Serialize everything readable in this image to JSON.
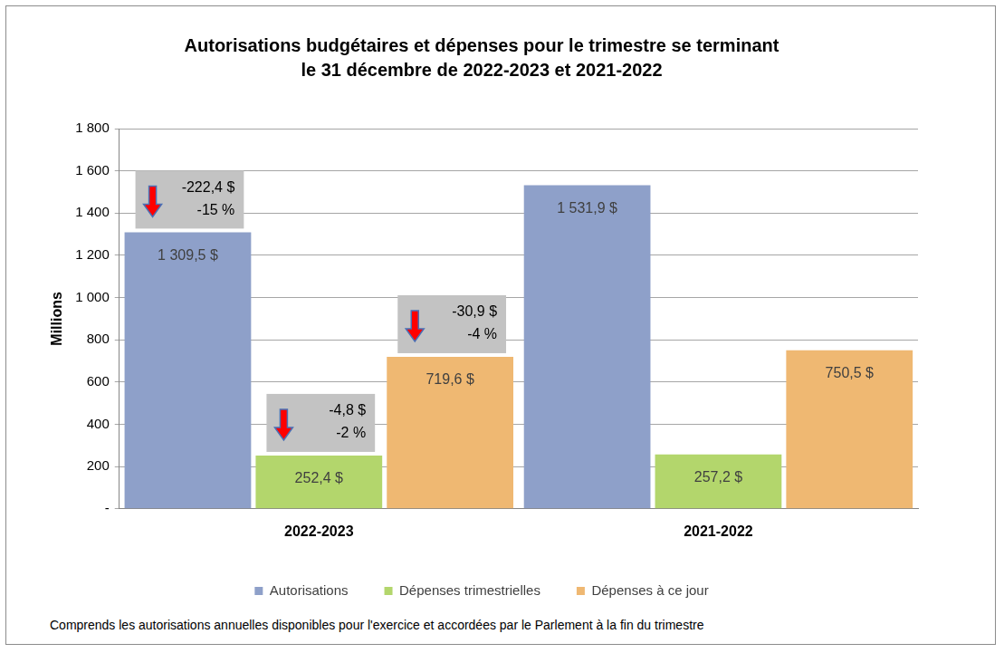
{
  "chart_data": {
    "type": "bar",
    "title": [
      "Autorisations budgétaires et dépenses pour le trimestre se terminant",
      "le 31 décembre de 2022-2023 et 2021-2022"
    ],
    "y_label": "Millions",
    "categories": [
      "2022-2023",
      "2021-2022"
    ],
    "series": [
      {
        "name": "Autorisations",
        "color": "#8ea0c9",
        "values": [
          1309.5,
          1531.9
        ],
        "value_labels": [
          "1 309,5 $",
          "1 531,9 $"
        ]
      },
      {
        "name": "Dépenses trimestrielles",
        "color": "#b3d66c",
        "values": [
          252.4,
          257.2
        ],
        "value_labels": [
          "252,4 $",
          "257,2 $"
        ]
      },
      {
        "name": "Dépenses à ce jour",
        "color": "#efb872",
        "values": [
          719.6,
          750.5
        ],
        "value_labels": [
          "719,6 $",
          "750,5 $"
        ]
      }
    ],
    "ylim": [
      0,
      1800
    ],
    "yticks": [
      {
        "value": 0,
        "label": "-"
      },
      200,
      400,
      600,
      800,
      {
        "value": 1000,
        "label": "1 000"
      },
      {
        "value": 1200,
        "label": "1 200"
      },
      {
        "value": 1400,
        "label": "1 400"
      },
      {
        "value": 1600,
        "label": "1 600"
      },
      {
        "value": 1800,
        "label": "1 800"
      }
    ],
    "grid": true,
    "legend": "bottom",
    "data_labels": true,
    "annotations": [
      {
        "series": "Autorisations",
        "category": "2022-2023",
        "text": [
          "-222,4 $",
          "-15 %"
        ]
      },
      {
        "series": "Dépenses trimestrielles",
        "category": "2022-2023",
        "text": [
          "-4,8 $",
          "-2 %"
        ]
      },
      {
        "series": "Dépenses à ce jour",
        "category": "2022-2023",
        "text": [
          "-30,9 $",
          "-4 %"
        ]
      }
    ],
    "note": "Comprends les autorisations annuelles disponibles pour l'exercice et accordées par le Parlement à la fin du trimestre"
  }
}
